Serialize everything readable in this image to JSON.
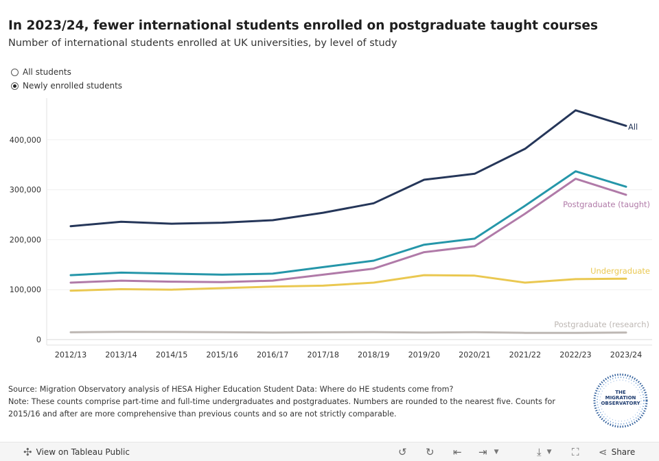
{
  "title": "In 2023/24, fewer international students enrolled on postgraduate taught courses",
  "subtitle": "Number of international students enrolled at UK universities, by level of study",
  "filter": {
    "options": [
      {
        "label": "All students",
        "selected": false
      },
      {
        "label": "Newly enrolled students",
        "selected": true
      }
    ]
  },
  "chart_data": {
    "type": "line",
    "categories": [
      "2012/13",
      "2013/14",
      "2014/15",
      "2015/16",
      "2016/17",
      "2017/18",
      "2018/19",
      "2019/20",
      "2020/21",
      "2021/22",
      "2022/23",
      "2023/24"
    ],
    "yticks": [
      "0",
      "100,000",
      "200,000",
      "300,000",
      "400,000"
    ],
    "ylim": [
      0,
      480000
    ],
    "grid": true,
    "series": [
      {
        "name": "All",
        "color": "#253659",
        "values": [
          227000,
          236000,
          232000,
          234000,
          239000,
          254000,
          273000,
          320000,
          332000,
          382000,
          459000,
          428000
        ]
      },
      {
        "name": "",
        "color": "#2596a9",
        "values": [
          129000,
          134000,
          132000,
          130000,
          132000,
          145000,
          158000,
          190000,
          202000,
          268000,
          337000,
          306000
        ]
      },
      {
        "name": "Postgraduate (taught)",
        "color": "#b07aa8",
        "values": [
          114000,
          118000,
          116000,
          115000,
          118000,
          130000,
          142000,
          175000,
          187000,
          252000,
          322000,
          290000
        ]
      },
      {
        "name": "Undergraduate",
        "color": "#eac851",
        "values": [
          98000,
          101000,
          100000,
          103000,
          106000,
          108000,
          114000,
          129000,
          128000,
          114000,
          121000,
          122000
        ]
      },
      {
        "name": "Postgraduate (research)",
        "color": "#bdb7b3",
        "values": [
          14500,
          15500,
          15200,
          14800,
          14200,
          14500,
          15000,
          14000,
          14700,
          13500,
          13500,
          14000
        ]
      }
    ]
  },
  "footer": {
    "source": "Source: Migration Observatory analysis of HESA Higher Education Student Data: Where do HE students come from?",
    "note_line1": "Note: These counts comprise part-time and full-time undergraduates and postgraduates. Numbers are rounded to the nearest five. Counts for",
    "note_line2": "2015/16 and after are more comprehensive than previous counts and so are not strictly comparable."
  },
  "logo": {
    "line1": "THE",
    "line2": "MIGRATION",
    "line3": "OBSERVATORY"
  },
  "toolbar": {
    "view_label": "View on Tableau Public",
    "share_label": "Share",
    "icons": [
      "tableau-icon",
      "undo-icon",
      "redo-icon",
      "revert-icon",
      "download-icon",
      "fullscreen-icon",
      "share-icon"
    ]
  }
}
